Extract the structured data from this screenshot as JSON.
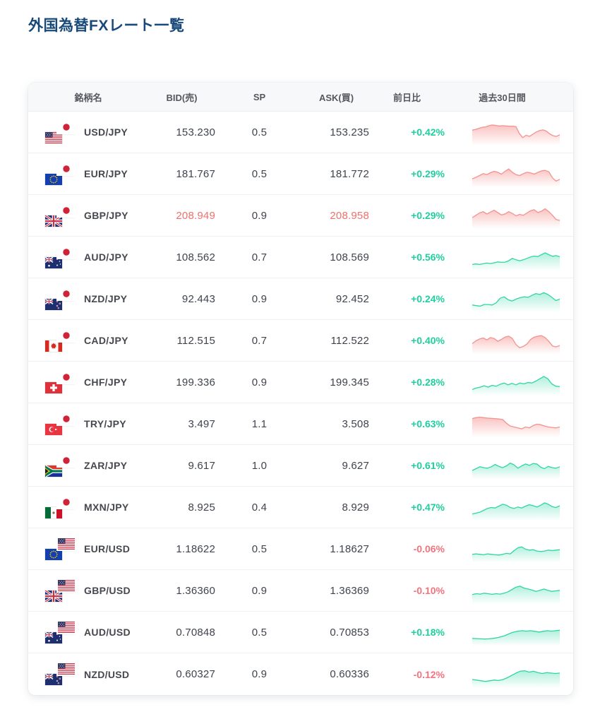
{
  "page": {
    "title": "外国為替FXレート一覧"
  },
  "colors": {
    "title_navy": "#17497a",
    "positive_green": "#1fcf9e",
    "negative_red": "#f4737d",
    "price_flash_red": "#ef716e",
    "spark_red": "#f4928f",
    "spark_green": "#2fd6a3"
  },
  "table": {
    "columns": [
      "銘柄名",
      "BID(売)",
      "SP",
      "ASK(買)",
      "前日比",
      "過去30日間"
    ],
    "rows": [
      {
        "pair": "USD/JPY",
        "base_flag": "us",
        "quote_flag": "jp",
        "bid": "153.230",
        "sp": "0.5",
        "ask": "153.235",
        "change": "+0.42%",
        "change_dir": "up",
        "price_flash": false,
        "spark": {
          "color": "red",
          "values": [
            60,
            63,
            68,
            72,
            74,
            79,
            82,
            80,
            78,
            79,
            78,
            77,
            77,
            75,
            45,
            28,
            38,
            33,
            42,
            52,
            58,
            61,
            56,
            44,
            36,
            33,
            40
          ]
        }
      },
      {
        "pair": "EUR/JPY",
        "base_flag": "eu",
        "quote_flag": "jp",
        "bid": "181.767",
        "sp": "0.5",
        "ask": "181.772",
        "change": "+0.29%",
        "change_dir": "up",
        "price_flash": false,
        "spark": {
          "color": "red",
          "values": [
            30,
            36,
            44,
            52,
            48,
            56,
            62,
            58,
            50,
            62,
            72,
            58,
            48,
            44,
            52,
            58,
            55,
            50,
            58,
            64,
            66,
            60,
            34,
            20,
            28
          ]
        }
      },
      {
        "pair": "GBP/JPY",
        "base_flag": "gb",
        "quote_flag": "jp",
        "bid": "208.949",
        "sp": "0.9",
        "ask": "208.958",
        "change": "+0.29%",
        "change_dir": "up",
        "price_flash": true,
        "spark": {
          "color": "red",
          "values": [
            42,
            52,
            62,
            68,
            58,
            66,
            74,
            64,
            54,
            58,
            68,
            60,
            50,
            56,
            52,
            62,
            72,
            76,
            64,
            70,
            80,
            68,
            52,
            34,
            30
          ]
        }
      },
      {
        "pair": "AUD/JPY",
        "base_flag": "au",
        "quote_flag": "jp",
        "bid": "108.562",
        "sp": "0.7",
        "ask": "108.569",
        "change": "+0.56%",
        "change_dir": "up",
        "price_flash": false,
        "spark": {
          "color": "green",
          "values": [
            20,
            22,
            20,
            23,
            26,
            24,
            27,
            31,
            29,
            30,
            36,
            46,
            40,
            36,
            40,
            46,
            52,
            56,
            54,
            62,
            70,
            62,
            55,
            58,
            53
          ]
        }
      },
      {
        "pair": "NZD/JPY",
        "base_flag": "nz",
        "quote_flag": "jp",
        "bid": "92.443",
        "sp": "0.9",
        "ask": "92.452",
        "change": "+0.24%",
        "change_dir": "up",
        "price_flash": false,
        "spark": {
          "color": "green",
          "values": [
            25,
            22,
            20,
            27,
            27,
            25,
            34,
            54,
            60,
            48,
            42,
            50,
            56,
            60,
            58,
            66,
            74,
            70,
            78,
            70,
            58,
            44,
            50
          ]
        }
      },
      {
        "pair": "CAD/JPY",
        "base_flag": "ca",
        "quote_flag": "jp",
        "bid": "112.515",
        "sp": "0.7",
        "ask": "112.522",
        "change": "+0.40%",
        "change_dir": "up",
        "price_flash": false,
        "spark": {
          "color": "red",
          "values": [
            38,
            50,
            58,
            62,
            54,
            64,
            60,
            48,
            56,
            66,
            70,
            60,
            34,
            20,
            26,
            36,
            56,
            66,
            70,
            72,
            64,
            48,
            28,
            24,
            30
          ]
        }
      },
      {
        "pair": "CHF/JPY",
        "base_flag": "ch",
        "quote_flag": "jp",
        "bid": "199.336",
        "sp": "0.9",
        "ask": "199.345",
        "change": "+0.28%",
        "change_dir": "up",
        "price_flash": false,
        "spark": {
          "color": "green",
          "values": [
            20,
            26,
            30,
            36,
            30,
            38,
            34,
            42,
            48,
            40,
            46,
            40,
            48,
            44,
            50,
            48,
            56,
            66,
            76,
            66,
            44,
            34,
            32
          ]
        }
      },
      {
        "pair": "TRY/JPY",
        "base_flag": "tr",
        "quote_flag": "jp",
        "bid": "3.497",
        "sp": "1.1",
        "ask": "3.508",
        "change": "+0.63%",
        "change_dir": "up",
        "price_flash": false,
        "spark": {
          "color": "red",
          "values": [
            74,
            78,
            80,
            78,
            76,
            75,
            74,
            72,
            70,
            54,
            42,
            38,
            34,
            30,
            38,
            34,
            44,
            50,
            48,
            42,
            38,
            36,
            34,
            38
          ]
        }
      },
      {
        "pair": "ZAR/JPY",
        "base_flag": "za",
        "quote_flag": "jp",
        "bid": "9.617",
        "sp": "1.0",
        "ask": "9.627",
        "change": "+0.61%",
        "change_dir": "up",
        "price_flash": false,
        "spark": {
          "color": "green",
          "values": [
            30,
            38,
            46,
            42,
            40,
            46,
            56,
            48,
            42,
            50,
            62,
            54,
            40,
            50,
            58,
            52,
            60,
            58,
            44,
            38,
            48,
            42,
            40,
            46
          ]
        }
      },
      {
        "pair": "MXN/JPY",
        "base_flag": "mx",
        "quote_flag": "jp",
        "bid": "8.925",
        "sp": "0.4",
        "ask": "8.929",
        "change": "+0.47%",
        "change_dir": "up",
        "price_flash": false,
        "spark": {
          "color": "green",
          "values": [
            22,
            26,
            30,
            38,
            46,
            50,
            48,
            56,
            64,
            60,
            50,
            46,
            52,
            48,
            56,
            62,
            58,
            52,
            60,
            70,
            64,
            54,
            50,
            58
          ]
        }
      },
      {
        "pair": "EUR/USD",
        "base_flag": "eu",
        "quote_flag": "us",
        "bid": "1.18622",
        "sp": "0.5",
        "ask": "1.18627",
        "change": "-0.06%",
        "change_dir": "down",
        "price_flash": false,
        "spark": {
          "color": "green",
          "values": [
            28,
            30,
            28,
            26,
            30,
            28,
            26,
            25,
            28,
            32,
            30,
            44,
            56,
            60,
            50,
            46,
            48,
            42,
            40,
            42,
            46,
            44,
            46,
            48
          ]
        }
      },
      {
        "pair": "GBP/USD",
        "base_flag": "gb",
        "quote_flag": "us",
        "bid": "1.36360",
        "sp": "0.9",
        "ask": "1.36369",
        "change": "-0.10%",
        "change_dir": "down",
        "price_flash": false,
        "spark": {
          "color": "green",
          "values": [
            34,
            38,
            36,
            40,
            38,
            35,
            38,
            36,
            40,
            46,
            56,
            66,
            70,
            62,
            58,
            54,
            48,
            52,
            58,
            52,
            48,
            50,
            52
          ]
        }
      },
      {
        "pair": "AUD/USD",
        "base_flag": "au",
        "quote_flag": "us",
        "bid": "0.70848",
        "sp": "0.5",
        "ask": "0.70853",
        "change": "+0.18%",
        "change_dir": "up",
        "price_flash": false,
        "spark": {
          "color": "green",
          "values": [
            25,
            24,
            23,
            22,
            23,
            25,
            28,
            32,
            38,
            46,
            52,
            56,
            58,
            56,
            58,
            55,
            52,
            55,
            58,
            56,
            58,
            60
          ]
        }
      },
      {
        "pair": "NZD/USD",
        "base_flag": "nz",
        "quote_flag": "us",
        "bid": "0.60327",
        "sp": "0.9",
        "ask": "0.60336",
        "change": "-0.12%",
        "change_dir": "down",
        "price_flash": false,
        "spark": {
          "color": "green",
          "values": [
            30,
            28,
            25,
            22,
            25,
            28,
            26,
            30,
            38,
            48,
            58,
            66,
            68,
            62,
            66,
            60,
            56,
            60,
            58,
            56,
            58
          ]
        }
      }
    ]
  }
}
